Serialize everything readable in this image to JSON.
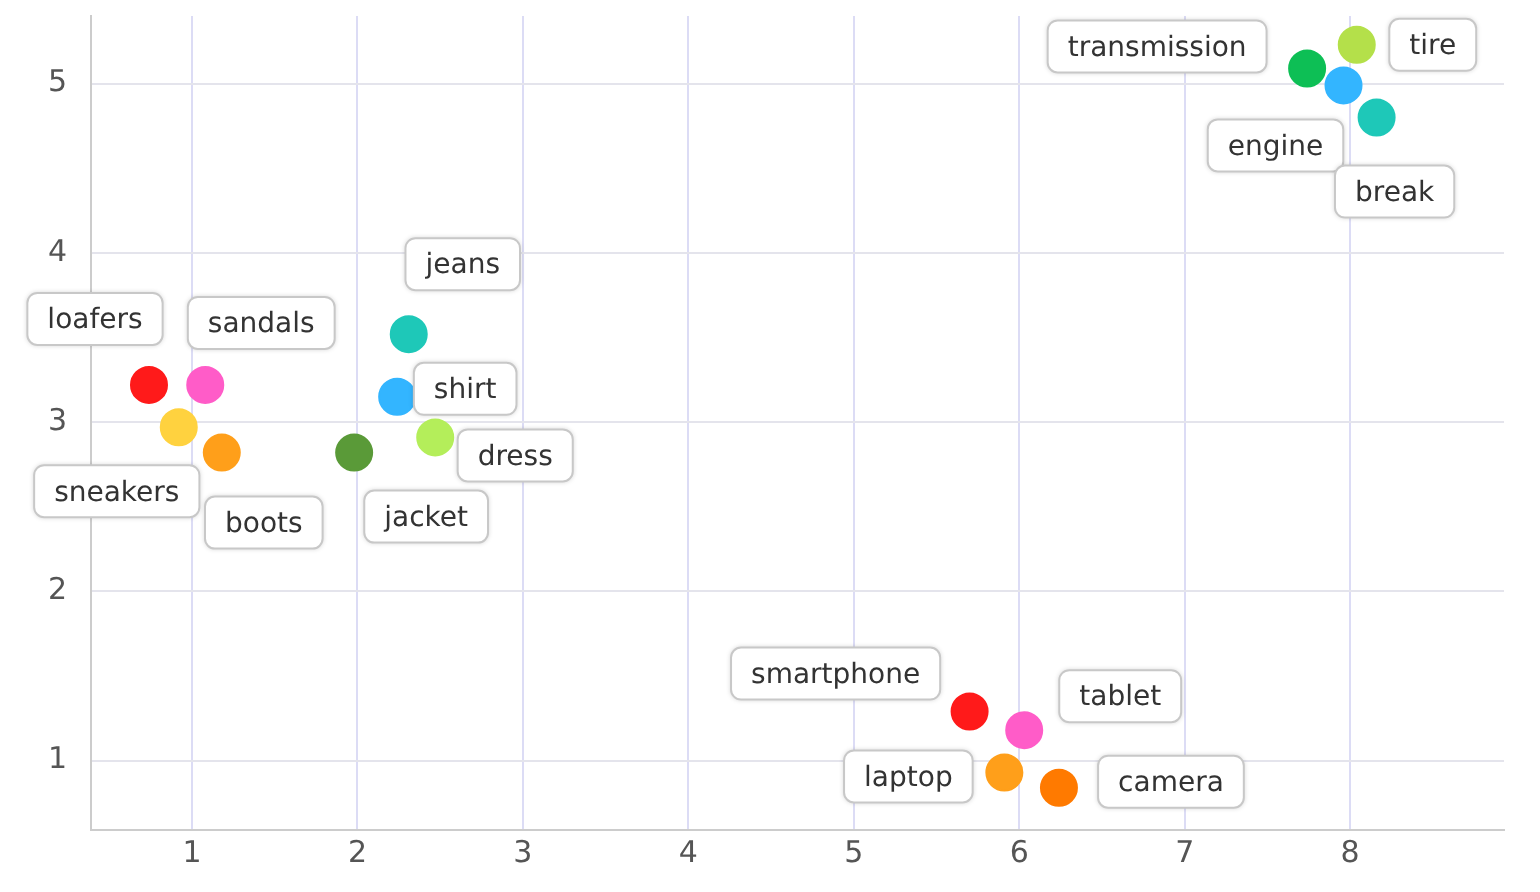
{
  "chart_data": {
    "type": "scatter",
    "xlim": [
      0.39,
      8.93
    ],
    "ylim": [
      0.59,
      5.4
    ],
    "xticks": [
      1,
      2,
      3,
      4,
      5,
      6,
      7,
      8
    ],
    "yticks": [
      1,
      2,
      3,
      4,
      5
    ],
    "grid": true,
    "legend": false,
    "marker": "circle",
    "series": [
      {
        "name": "loafers",
        "color": "#ff1a1a",
        "x": [
          0.74
        ],
        "values": [
          3.22
        ]
      },
      {
        "name": "sandals",
        "color": "#ff5cc8",
        "x": [
          1.08
        ],
        "values": [
          3.22
        ]
      },
      {
        "name": "sneakers",
        "color": "#ffd23f",
        "x": [
          0.92
        ],
        "values": [
          2.97
        ]
      },
      {
        "name": "boots",
        "color": "#ff9f1a",
        "x": [
          1.18
        ],
        "values": [
          2.82
        ]
      },
      {
        "name": "jeans",
        "color": "#1ec8b8",
        "x": [
          2.31
        ],
        "values": [
          3.52
        ]
      },
      {
        "name": "shirt",
        "color": "#33b5ff",
        "x": [
          2.24
        ],
        "values": [
          3.15
        ]
      },
      {
        "name": "dress",
        "color": "#b4ee5a",
        "x": [
          2.47
        ],
        "values": [
          2.91
        ]
      },
      {
        "name": "jacket",
        "color": "#5a9a38",
        "x": [
          1.98
        ],
        "values": [
          2.82
        ]
      },
      {
        "name": "smartphone",
        "color": "#ff1a1a",
        "x": [
          5.7
        ],
        "values": [
          1.29
        ]
      },
      {
        "name": "tablet",
        "color": "#ff5cc8",
        "x": [
          6.03
        ],
        "values": [
          1.18
        ]
      },
      {
        "name": "laptop",
        "color": "#ff9f1a",
        "x": [
          5.91
        ],
        "values": [
          0.93
        ]
      },
      {
        "name": "camera",
        "color": "#ff7a00",
        "x": [
          6.24
        ],
        "values": [
          0.84
        ]
      },
      {
        "name": "transmission",
        "color": "#0dbf55",
        "x": [
          7.74
        ],
        "values": [
          5.09
        ]
      },
      {
        "name": "tire",
        "color": "#b4e04a",
        "x": [
          8.04
        ],
        "values": [
          5.23
        ]
      },
      {
        "name": "engine",
        "color": "#33b5ff",
        "x": [
          7.96
        ],
        "values": [
          4.99
        ]
      },
      {
        "name": "break",
        "color": "#1ec8b8",
        "x": [
          8.16
        ],
        "values": [
          4.8
        ]
      }
    ]
  }
}
